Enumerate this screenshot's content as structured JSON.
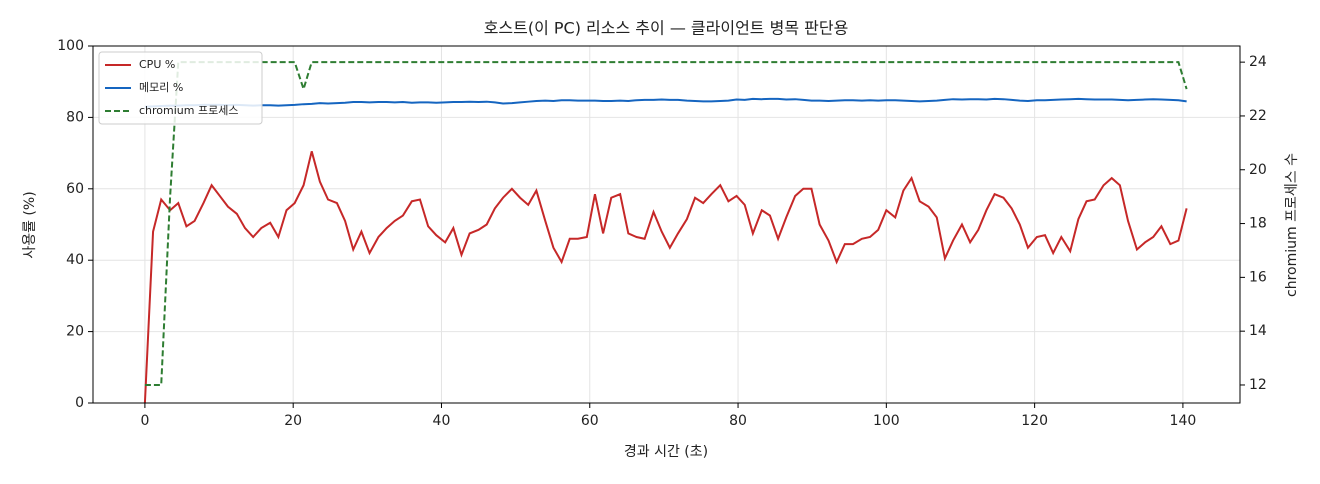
{
  "chart_data": {
    "type": "line",
    "title": "호스트(이 PC) 리소스 추이 — 클라이언트 병목 판단용",
    "x_label": "경과 시간 (초)",
    "y_label": "사용률 (%)",
    "y2_label": "chromium 프로세스 수",
    "xlim": [
      -7,
      147.7
    ],
    "xticks": [
      0,
      20,
      40,
      60,
      80,
      100,
      120,
      140
    ],
    "ylim": [
      0,
      100
    ],
    "yticks": [
      0,
      20,
      40,
      60,
      80,
      100
    ],
    "y2lim": [
      11.33,
      24.6
    ],
    "y2ticks": [
      12,
      14,
      16,
      18,
      20,
      22,
      24
    ],
    "grid": true,
    "legend": "upper left",
    "x": [
      0,
      1.1,
      2.2,
      3.4,
      4.5,
      5.6,
      6.7,
      7.9,
      9.0,
      10.1,
      11.2,
      12.4,
      13.5,
      14.6,
      15.7,
      16.9,
      18.0,
      19.1,
      20.2,
      21.4,
      22.5,
      23.6,
      24.7,
      25.9,
      27.0,
      28.1,
      29.2,
      30.3,
      31.5,
      32.6,
      33.7,
      34.8,
      36.0,
      37.1,
      38.2,
      39.3,
      40.5,
      41.6,
      42.7,
      43.8,
      45.0,
      46.1,
      47.2,
      48.3,
      49.5,
      50.6,
      51.7,
      52.8,
      54.0,
      55.1,
      56.2,
      57.3,
      58.4,
      59.6,
      60.7,
      61.8,
      62.9,
      64.1,
      65.2,
      66.3,
      67.4,
      68.6,
      69.7,
      70.8,
      71.9,
      73.1,
      74.2,
      75.3,
      76.4,
      77.6,
      78.7,
      79.8,
      80.9,
      82.0,
      83.2,
      84.3,
      85.4,
      86.5,
      87.7,
      88.8,
      89.9,
      91.0,
      92.2,
      93.3,
      94.4,
      95.5,
      96.7,
      97.8,
      98.9,
      100.0,
      101.2,
      102.3,
      103.4,
      104.5,
      105.7,
      106.8,
      107.9,
      109.0,
      110.2,
      111.3,
      112.4,
      113.5,
      114.6,
      115.8,
      116.9,
      118.0,
      119.1,
      120.3,
      121.4,
      122.5,
      123.6,
      124.8,
      125.9,
      127.0,
      128.1,
      129.3,
      130.4,
      131.5,
      132.6,
      133.8,
      134.9,
      136.0,
      137.1,
      138.3,
      139.4,
      140.5
    ],
    "series": [
      {
        "name": "CPU %",
        "color": "#c62828",
        "axis": "y",
        "values": [
          0,
          48,
          57,
          54,
          56,
          49.5,
          51,
          56,
          61,
          58,
          55,
          53,
          49,
          46.5,
          49,
          50.5,
          46.5,
          54,
          56,
          61,
          70.5,
          62,
          57,
          56,
          51,
          43,
          48,
          42,
          46.5,
          49,
          51,
          52.5,
          56.5,
          57,
          49.5,
          47,
          45,
          49,
          41.5,
          47.5,
          48.5,
          50,
          54.5,
          57.5,
          60,
          57.5,
          55.5,
          59.5,
          51,
          43.5,
          39.5,
          46,
          46,
          46.5,
          58.5,
          47.5,
          57.5,
          58.5,
          47.5,
          46.5,
          46,
          53.5,
          48,
          43.5,
          47.5,
          51.5,
          57.5,
          56,
          58.5,
          61,
          56.5,
          58,
          55.5,
          47.5,
          54,
          52.5,
          46,
          52,
          58,
          60,
          60,
          50,
          45.5,
          39.5,
          44.5,
          44.5,
          46,
          46.5,
          48.5,
          54,
          52,
          59.5,
          63,
          56.5,
          55,
          52,
          40.5,
          45.5,
          50,
          45,
          48.5,
          54,
          58.5,
          57.5,
          54.5,
          50,
          43.5,
          46.5,
          47,
          42,
          46.5,
          42.5,
          51.5,
          56.5,
          57,
          61,
          63,
          61,
          51,
          43,
          45,
          46.5,
          49.5,
          44.5,
          45.5,
          54.5
        ]
      },
      {
        "name": "메모리 %",
        "color": "#1565c0",
        "axis": "y",
        "values": [
          83.0,
          83.1,
          83.2,
          83.3,
          83.3,
          83.4,
          83.4,
          83.5,
          83.5,
          83.5,
          83.4,
          83.5,
          83.4,
          83.3,
          83.4,
          83.4,
          83.3,
          83.4,
          83.5,
          83.7,
          83.8,
          84.0,
          83.9,
          84.0,
          84.1,
          84.3,
          84.3,
          84.2,
          84.3,
          84.3,
          84.2,
          84.3,
          84.1,
          84.2,
          84.2,
          84.1,
          84.2,
          84.3,
          84.3,
          84.4,
          84.3,
          84.4,
          84.2,
          83.9,
          84.0,
          84.2,
          84.4,
          84.6,
          84.7,
          84.6,
          84.8,
          84.8,
          84.7,
          84.7,
          84.7,
          84.6,
          84.6,
          84.7,
          84.6,
          84.8,
          84.9,
          84.9,
          85.0,
          84.9,
          84.9,
          84.7,
          84.6,
          84.5,
          84.5,
          84.6,
          84.7,
          85.0,
          84.9,
          85.2,
          85.1,
          85.2,
          85.2,
          85.0,
          85.1,
          84.9,
          84.7,
          84.7,
          84.6,
          84.7,
          84.8,
          84.8,
          84.7,
          84.8,
          84.7,
          84.8,
          84.8,
          84.7,
          84.6,
          84.5,
          84.6,
          84.7,
          84.9,
          85.1,
          85.0,
          85.1,
          85.1,
          85.0,
          85.2,
          85.1,
          84.9,
          84.7,
          84.6,
          84.8,
          84.8,
          84.9,
          85.0,
          85.1,
          85.2,
          85.1,
          85.0,
          85.0,
          85.0,
          84.9,
          84.8,
          84.9,
          85.0,
          85.1,
          85.0,
          84.9,
          84.8,
          84.5
        ]
      },
      {
        "name": "chromium 프로세스",
        "color": "#2e7d32",
        "axis": "y2",
        "dashed": true,
        "values": [
          12,
          12,
          12,
          19,
          24,
          24,
          24,
          24,
          24,
          24,
          24,
          24,
          24,
          24,
          24,
          24,
          24,
          24,
          24,
          23,
          24,
          24,
          24,
          24,
          24,
          24,
          24,
          24,
          24,
          24,
          24,
          24,
          24,
          24,
          24,
          24,
          24,
          24,
          24,
          24,
          24,
          24,
          24,
          24,
          24,
          24,
          24,
          24,
          24,
          24,
          24,
          24,
          24,
          24,
          24,
          24,
          24,
          24,
          24,
          24,
          24,
          24,
          24,
          24,
          24,
          24,
          24,
          24,
          24,
          24,
          24,
          24,
          24,
          24,
          24,
          24,
          24,
          24,
          24,
          24,
          24,
          24,
          24,
          24,
          24,
          24,
          24,
          24,
          24,
          24,
          24,
          24,
          24,
          24,
          24,
          24,
          24,
          24,
          24,
          24,
          24,
          24,
          24,
          24,
          24,
          24,
          24,
          24,
          24,
          24,
          24,
          24,
          24,
          24,
          24,
          24,
          24,
          24,
          24,
          24,
          24,
          24,
          24,
          24,
          24,
          23
        ]
      }
    ]
  }
}
